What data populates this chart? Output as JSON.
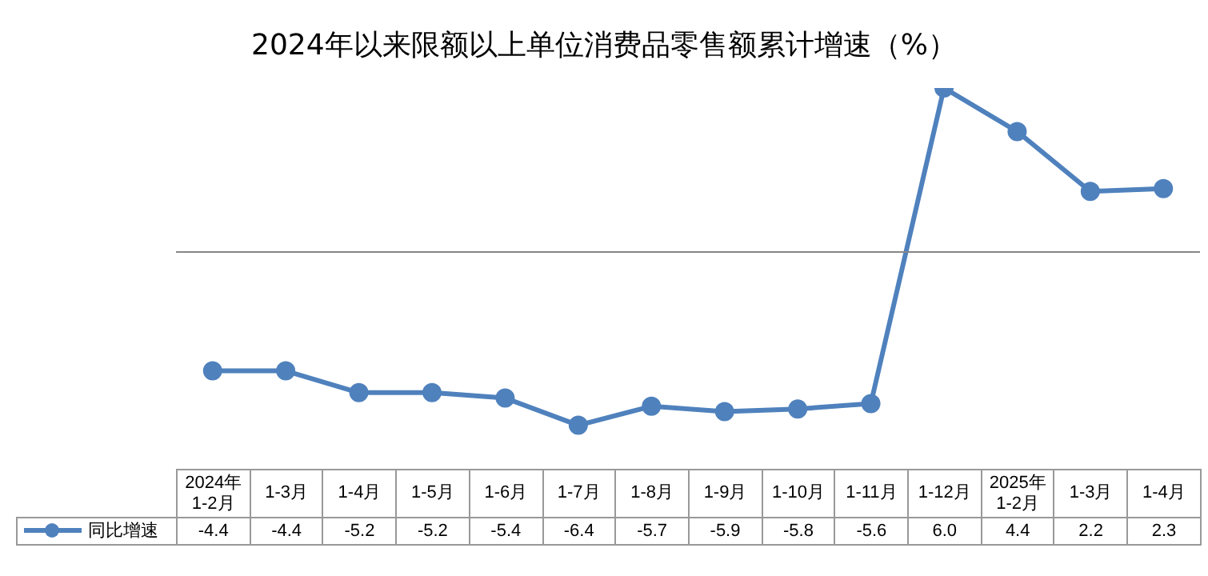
{
  "chart_data": {
    "type": "line",
    "title": "2024年以来限额以上单位消费品零售额累计增速（%）",
    "categories": [
      "2024年 1-2月",
      "1-3月",
      "1-4月",
      "1-5月",
      "1-6月",
      "1-7月",
      "1-8月",
      "1-9月",
      "1-10月",
      "1-11月",
      "1-12月",
      "2025年 1-2月",
      "1-3月",
      "1-4月"
    ],
    "series": [
      {
        "name": "同比增速",
        "color": "#4f81bd",
        "values": [
          -4.4,
          -4.4,
          -5.2,
          -5.2,
          -5.4,
          -6.4,
          -5.7,
          -5.9,
          -5.8,
          -5.6,
          6.0,
          4.4,
          2.2,
          2.3
        ],
        "value_labels": [
          "-4.4",
          "-4.4",
          "-5.2",
          "-5.2",
          "-5.4",
          "-6.4",
          "-5.7",
          "-5.9",
          "-5.8",
          "-5.6",
          "6.0",
          "4.4",
          "2.2",
          "2.3"
        ]
      }
    ],
    "marker": "circle",
    "line_style": "solid",
    "legend": "bottom left"
  }
}
